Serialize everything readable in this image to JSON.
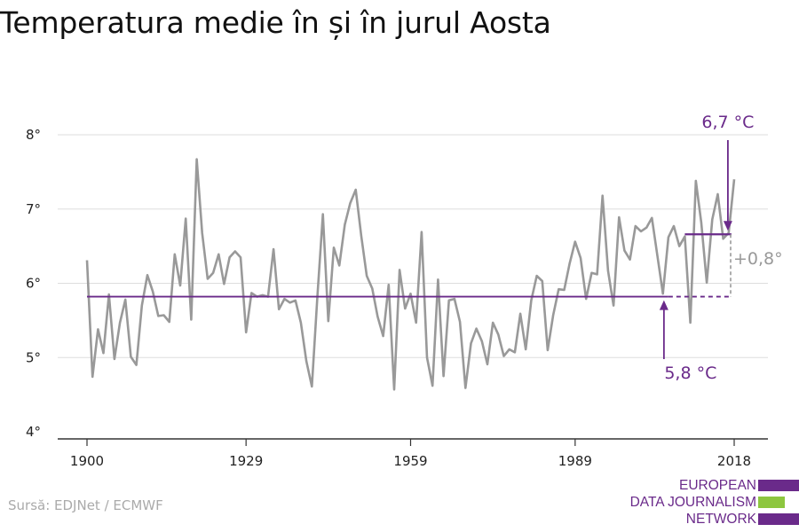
{
  "title": "Temperatura medie în și în jurul Aosta",
  "source": "Sursă: EDJNet / ECMWF",
  "logo": {
    "lines": [
      "EUROPEAN",
      "DATA JOURNALISM",
      "NETWORK"
    ],
    "colors": [
      "#6a2a8a",
      "#8dc63f",
      "#6a2a8a"
    ]
  },
  "colors": {
    "series": "#999999",
    "reference": "#6a2a8a",
    "grid": "#dddddd",
    "axis": "#333333"
  },
  "chart_data": {
    "type": "line",
    "title": "Temperatura medie în și în jurul Aosta",
    "xlim": [
      1900,
      2018
    ],
    "ylim": [
      4,
      8
    ],
    "grid": true,
    "x_ticks": [
      {
        "value": 1900,
        "label": "1900"
      },
      {
        "value": 1929,
        "label": "1929"
      },
      {
        "value": 1959,
        "label": "1959"
      },
      {
        "value": 1989,
        "label": "1989"
      },
      {
        "value": 2018,
        "label": "2018"
      }
    ],
    "y_ticks": [
      {
        "value": 4,
        "label": "4°"
      },
      {
        "value": 5,
        "label": "5°"
      },
      {
        "value": 6,
        "label": "6°"
      },
      {
        "value": 7,
        "label": "7°"
      },
      {
        "value": 8,
        "label": "8°"
      }
    ],
    "series": [
      {
        "x": [
          1900,
          1901,
          1902,
          1903,
          1904,
          1905,
          1906,
          1907,
          1908,
          1909,
          1910,
          1911,
          1912,
          1913,
          1914,
          1915,
          1916,
          1917,
          1918,
          1919,
          1920,
          1921,
          1922,
          1923,
          1924,
          1925,
          1926,
          1927,
          1928,
          1929,
          1930,
          1931,
          1932,
          1933,
          1934,
          1935,
          1936,
          1937,
          1938,
          1939,
          1940,
          1941,
          1942,
          1943,
          1944,
          1945,
          1946,
          1947,
          1948,
          1949,
          1950,
          1951,
          1952,
          1953,
          1954,
          1955,
          1956,
          1957,
          1958,
          1959,
          1960,
          1961,
          1962,
          1963,
          1964,
          1965,
          1966,
          1967,
          1968,
          1969,
          1970,
          1971,
          1972,
          1973,
          1974,
          1975,
          1976,
          1977,
          1978,
          1979,
          1980,
          1981,
          1982,
          1983,
          1984,
          1985,
          1986,
          1987,
          1988,
          1989,
          1990,
          1991,
          1992,
          1993,
          1994,
          1995,
          1996,
          1997,
          1998,
          1999,
          2000,
          2001,
          2002,
          2003,
          2004,
          2005,
          2006,
          2007,
          2008,
          2009,
          2010,
          2011,
          2012,
          2013,
          2014,
          2015,
          2016,
          2017,
          2018
        ],
        "values": [
          6.31,
          4.74,
          5.38,
          5.06,
          5.85,
          4.98,
          5.47,
          5.78,
          5.01,
          4.9,
          5.7,
          6.11,
          5.89,
          5.56,
          5.57,
          5.48,
          6.39,
          5.97,
          6.87,
          5.51,
          7.67,
          6.68,
          6.06,
          6.14,
          6.39,
          5.99,
          6.35,
          6.43,
          6.35,
          5.34,
          5.87,
          5.82,
          5.84,
          5.82,
          6.46,
          5.65,
          5.79,
          5.74,
          5.77,
          5.47,
          4.95,
          4.61,
          5.82,
          6.93,
          5.49,
          6.48,
          6.24,
          6.79,
          7.08,
          7.26,
          6.64,
          6.1,
          5.93,
          5.55,
          5.29,
          5.98,
          4.57,
          6.18,
          5.66,
          5.86,
          5.47,
          6.69,
          5.0,
          4.62,
          6.05,
          4.75,
          5.77,
          5.79,
          5.48,
          4.59,
          5.19,
          5.39,
          5.22,
          4.91,
          5.47,
          5.31,
          5.02,
          5.11,
          5.07,
          5.59,
          5.11,
          5.77,
          6.1,
          6.03,
          5.1,
          5.57,
          5.92,
          5.91,
          6.27,
          6.56,
          6.34,
          5.79,
          6.14,
          6.12,
          7.18,
          6.17,
          5.7,
          6.89,
          6.44,
          6.32,
          6.77,
          6.7,
          6.75,
          6.88,
          6.37,
          5.86,
          6.62,
          6.77,
          6.5,
          6.63,
          5.47,
          7.38,
          6.82,
          6.01,
          6.86,
          7.2,
          6.6,
          6.68,
          7.4
        ]
      }
    ],
    "annotations": {
      "baseline": {
        "value": 5.82,
        "label": "5,8 °C",
        "x_start": 1900,
        "x_end": 2018,
        "solid_end": 2006
      },
      "recent": {
        "value": 6.66,
        "label": "6,7 °C",
        "x_start": 2009,
        "x_end": 2017.5
      },
      "difference": {
        "label": "+0,8°"
      }
    }
  }
}
